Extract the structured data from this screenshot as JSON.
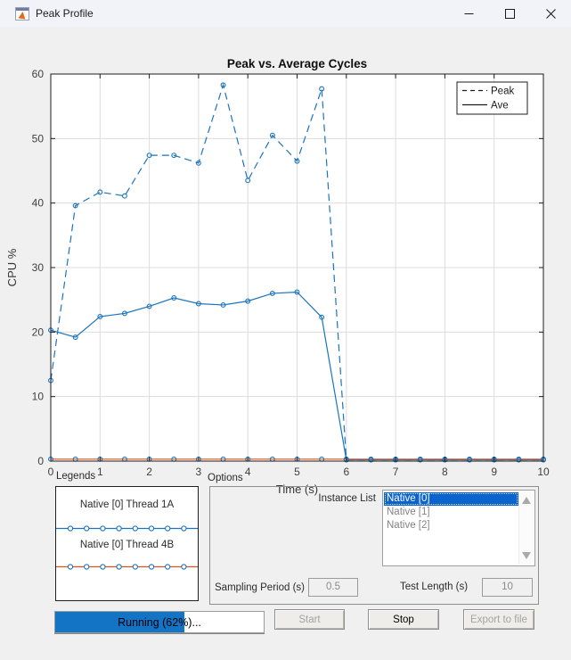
{
  "window": {
    "title": "Peak Profile"
  },
  "chart_data": {
    "type": "line",
    "title": "Peak vs. Average Cycles",
    "xlabel": "Time (s)",
    "ylabel": "CPU %",
    "xlim": [
      0,
      10
    ],
    "ylim": [
      0,
      60
    ],
    "xticks": [
      0,
      1,
      2,
      3,
      4,
      5,
      6,
      7,
      8,
      9,
      10
    ],
    "yticks": [
      0,
      10,
      20,
      30,
      40,
      50,
      60
    ],
    "grid": true,
    "legend": {
      "position": "top-right",
      "entries": [
        {
          "label": "Peak",
          "style": "dashed"
        },
        {
          "label": "Ave",
          "style": "solid"
        }
      ]
    },
    "x": [
      0,
      0.5,
      1,
      1.5,
      2,
      2.5,
      3,
      3.5,
      4,
      4.5,
      5,
      5.5,
      6,
      6.5,
      7,
      7.5,
      8,
      8.5,
      9,
      9.5,
      10
    ],
    "series": [
      {
        "name": "Peak",
        "style": "dashed",
        "color": "#1a74be",
        "marker": "o",
        "marker_color": "#1a74be",
        "values": [
          12.5,
          39.6,
          41.7,
          41.1,
          47.4,
          47.4,
          46.2,
          58.3,
          43.5,
          50.5,
          46.5,
          57.7,
          0.2,
          0.2,
          0.2,
          0.2,
          0.2,
          0.2,
          0.2,
          0.2,
          0.2
        ]
      },
      {
        "name": "Ave",
        "style": "solid",
        "color": "#1a74be",
        "marker": "o",
        "marker_color": "#1a74be",
        "values": [
          20.3,
          19.2,
          22.4,
          22.9,
          24.0,
          25.3,
          24.4,
          24.2,
          24.8,
          26.0,
          26.2,
          22.3,
          0.2,
          0.2,
          0.2,
          0.2,
          0.2,
          0.2,
          0.2,
          0.2,
          0.2
        ]
      },
      {
        "name": "Native [0] Thread 4B",
        "style": "solid",
        "color": "#d95319",
        "marker": "o",
        "marker_color": "#1a74be",
        "values": [
          0.3,
          0.3,
          0.3,
          0.3,
          0.3,
          0.3,
          0.3,
          0.3,
          0.3,
          0.3,
          0.3,
          0.3,
          0.3,
          0.3,
          0.3,
          0.3,
          0.3,
          0.3,
          0.3,
          0.3,
          0.3
        ]
      }
    ]
  },
  "panels": {
    "legends": {
      "label": "Legends",
      "marker_color": "#1a74be",
      "entries": [
        {
          "label": "Native [0] Thread 1A",
          "line_color": "#1a74be"
        },
        {
          "label": "Native [0] Thread 4B",
          "line_color": "#d95319"
        }
      ]
    },
    "options": {
      "label": "Options",
      "instance_list_label": "Instance List",
      "instance_list": {
        "items": [
          "Native [0]",
          "Native [1]",
          "Native [2]"
        ],
        "selected_index": 0
      },
      "sampling_label": "Sampling Period (s)",
      "sampling_value": "0.5",
      "test_length_label": "Test Length (s)",
      "test_length_value": "10"
    }
  },
  "progress": {
    "text": "Running (62%)...",
    "percent": 62,
    "fill_color": "#1373c5"
  },
  "buttons": {
    "start": {
      "label": "Start",
      "enabled": false
    },
    "stop": {
      "label": "Stop",
      "enabled": true
    },
    "export": {
      "label": "Export to file",
      "enabled": false
    }
  },
  "colors": {
    "series_blue": "#1a74be",
    "series_orange": "#d95319",
    "selection_blue": "#0b63ce",
    "figure_bg": "#f0f0f0"
  }
}
